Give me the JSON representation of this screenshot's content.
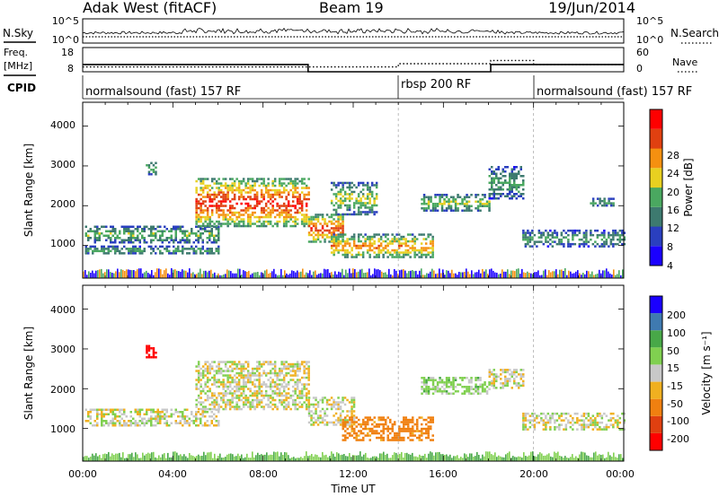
{
  "header": {
    "radar": "Adak West (fitACF)",
    "beam": "Beam 19",
    "date": "19/Jun/2014"
  },
  "sky_panel": {
    "left_label": "N.Sky",
    "right_label": "N.Search",
    "left_ticks": [
      "10^5",
      "10^0"
    ],
    "right_ticks": [
      "10^5",
      "10^0"
    ]
  },
  "freq_panel": {
    "left_label_1": "Freq.",
    "left_label_2": "[MHz]",
    "right_label": "Nave",
    "left_ticks": [
      "18",
      "8"
    ],
    "right_ticks": [
      "60",
      "0"
    ],
    "freq_steps": [
      {
        "t": 0,
        "mhz": 11
      },
      {
        "t": 10,
        "mhz": 8
      },
      {
        "t": 18.1,
        "mhz": 11
      },
      {
        "t": 24,
        "mhz": 11
      }
    ],
    "nave_steps": [
      {
        "t": 0,
        "nave": 12
      },
      {
        "t": 14,
        "nave": 20
      },
      {
        "t": 18.1,
        "nave": 28
      },
      {
        "t": 20,
        "nave": 18
      },
      {
        "t": 24,
        "nave": 18
      }
    ]
  },
  "cpid": {
    "label": "CPID",
    "segments": [
      {
        "start": 0,
        "end": 14,
        "text": "normalsound (fast) 157 RF"
      },
      {
        "start": 14,
        "end": 20,
        "text": "rbsp 200 RF"
      },
      {
        "start": 20,
        "end": 24,
        "text": "normalsound (fast) 157 RF"
      }
    ]
  },
  "chart_data": [
    {
      "type": "heatmap",
      "title": "",
      "xlabel": "",
      "ylabel": "Slant Range [km]",
      "xlim": [
        0,
        24
      ],
      "ylim": [
        180,
        4600
      ],
      "yticks": [
        "1000",
        "2000",
        "3000",
        "4000"
      ],
      "colorbar": {
        "label": "Power [dB]",
        "ticks": [
          "28",
          "24",
          "20",
          "16",
          "12",
          "8",
          "4"
        ],
        "colors": [
          "#1a00ff",
          "#2a3fbf",
          "#3d7a6f",
          "#4aa860",
          "#e8d020",
          "#f59010",
          "#e04010",
          "#ff0000"
        ]
      },
      "features": [
        {
          "t0": 0.1,
          "t1": 6.0,
          "r0": 1100,
          "r1": 1500,
          "level": 0.35
        },
        {
          "t0": 0.1,
          "t1": 6.0,
          "r0": 800,
          "r1": 1000,
          "level": 0.3
        },
        {
          "t0": 2.8,
          "t1": 3.2,
          "r0": 2800,
          "r1": 3100,
          "level": 0.4
        },
        {
          "t0": 5.0,
          "t1": 10.0,
          "r0": 1500,
          "r1": 2700,
          "level": 0.7
        },
        {
          "t0": 10.0,
          "t1": 11.5,
          "r0": 1100,
          "r1": 1800,
          "level": 0.65
        },
        {
          "t0": 11.0,
          "t1": 13.0,
          "r0": 1800,
          "r1": 2600,
          "level": 0.4
        },
        {
          "t0": 11.0,
          "t1": 15.5,
          "r0": 700,
          "r1": 1300,
          "level": 0.55
        },
        {
          "t0": 15.0,
          "t1": 18.0,
          "r0": 1900,
          "r1": 2300,
          "level": 0.4
        },
        {
          "t0": 18.0,
          "t1": 19.5,
          "r0": 2200,
          "r1": 3000,
          "level": 0.3
        },
        {
          "t0": 19.5,
          "t1": 24.0,
          "r0": 1000,
          "r1": 1400,
          "level": 0.3
        },
        {
          "t0": 22.5,
          "t1": 23.5,
          "r0": 2000,
          "r1": 2200,
          "level": 0.3
        }
      ]
    },
    {
      "type": "heatmap",
      "title": "",
      "xlabel": "Time UT",
      "ylabel": "Slant Range [km]",
      "xlim": [
        0,
        24
      ],
      "ylim": [
        180,
        4600
      ],
      "yticks": [
        "1000",
        "2000",
        "3000",
        "4000"
      ],
      "xticks": [
        "00:00",
        "04:00",
        "08:00",
        "12:00",
        "16:00",
        "20:00",
        "00:00"
      ],
      "colorbar": {
        "label": "Velocity [m s⁻¹]",
        "ticks": [
          "200",
          "100",
          "50",
          "15",
          "-15",
          "-50",
          "-100",
          "-200"
        ],
        "colors": [
          "#1a00ff",
          "#3f7ab0",
          "#48a848",
          "#80d050",
          "#c8c8c8",
          "#f0b020",
          "#f08010",
          "#e04010",
          "#ff0000"
        ]
      },
      "features": [
        {
          "t0": 0.1,
          "t1": 6.0,
          "r0": 1100,
          "r1": 1500,
          "vel": 0
        },
        {
          "t0": 2.8,
          "t1": 3.2,
          "r0": 2800,
          "r1": 3100,
          "vel": -200
        },
        {
          "t0": 5.0,
          "t1": 10.0,
          "r0": 1500,
          "r1": 2700,
          "vel": 0
        },
        {
          "t0": 10.0,
          "t1": 12.0,
          "r0": 1100,
          "r1": 1800,
          "vel": 0
        },
        {
          "t0": 11.5,
          "t1": 15.5,
          "r0": 700,
          "r1": 1300,
          "vel": -50
        },
        {
          "t0": 15.0,
          "t1": 18.0,
          "r0": 1900,
          "r1": 2300,
          "vel": 15
        },
        {
          "t0": 18.0,
          "t1": 19.5,
          "r0": 2000,
          "r1": 2500,
          "vel": 0
        },
        {
          "t0": 19.5,
          "t1": 24.0,
          "r0": 1000,
          "r1": 1400,
          "vel": 0
        }
      ]
    }
  ]
}
